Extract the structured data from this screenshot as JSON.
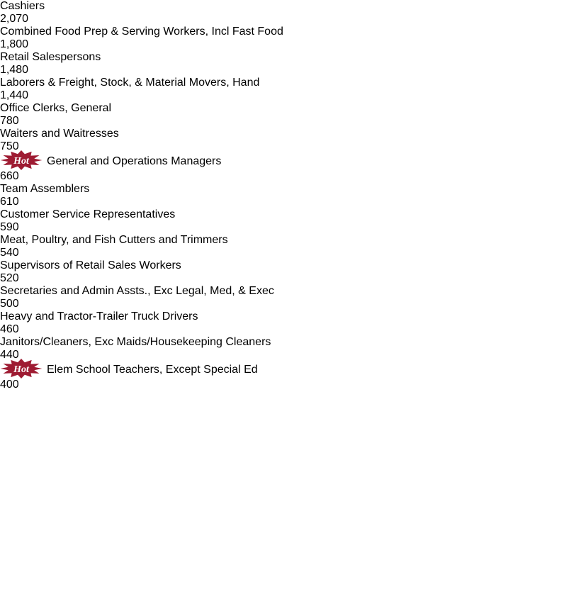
{
  "chart_data": {
    "type": "bar",
    "orientation": "horizontal",
    "categories": [
      "Cashiers",
      "Combined Food Prep & Serving Workers, Incl Fast Food",
      "Retail Salespersons",
      "Laborers & Freight, Stock, & Material Movers, Hand",
      "Office Clerks, General",
      "Waiters and Waitresses",
      "General and Operations Managers",
      "Team Assemblers",
      "Customer Service Representatives",
      "Meat, Poultry, and Fish Cutters and Trimmers",
      "Supervisors of Retail Sales Workers",
      "Secretaries and Admin Assts., Exc Legal, Med, & Exec",
      "Heavy and Tractor-Trailer Truck Drivers",
      "Janitors/Cleaners, Exc Maids/Housekeeping Cleaners",
      "Elem School Teachers, Except Special Ed"
    ],
    "values": [
      2070,
      1800,
      1480,
      1440,
      780,
      750,
      660,
      610,
      590,
      540,
      520,
      500,
      460,
      440,
      400
    ],
    "value_labels": [
      "2,070",
      "1,800",
      "1,480",
      "1,440",
      "780",
      "750",
      "660",
      "610",
      "590",
      "540",
      "520",
      "500",
      "460",
      "440",
      "400"
    ],
    "highlight": [
      false,
      false,
      false,
      false,
      false,
      false,
      true,
      false,
      false,
      false,
      false,
      false,
      false,
      false,
      true
    ],
    "highlight_label": "Hot",
    "color": "#d99594",
    "edge_color": "#222222",
    "highlight_color": "#9e1b32"
  }
}
